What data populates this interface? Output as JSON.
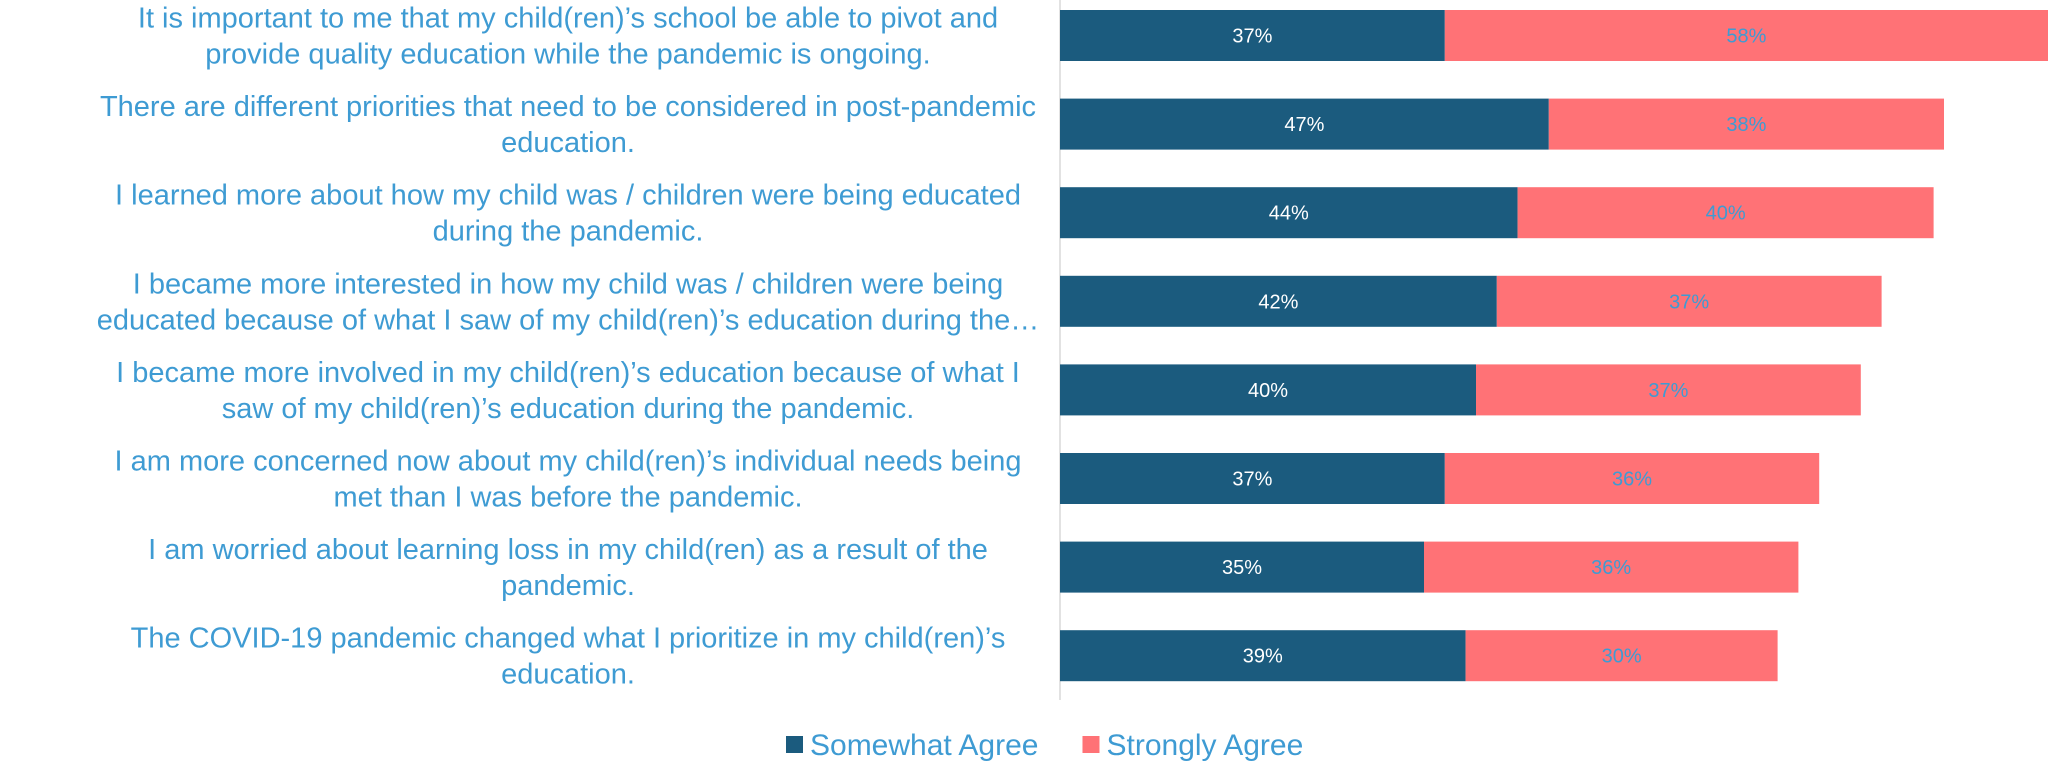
{
  "chart_data": {
    "type": "bar",
    "orientation": "horizontal",
    "stacked": true,
    "categories": [
      "It is important to me that my child(ren)’s school be able to pivot and provide quality education while the pandemic is ongoing.",
      "There are different priorities that need to be considered in post-pandemic education.",
      "I learned more about how my child was / children were being educated during the pandemic.",
      "I became more interested in how my child was / children were being educated because of what I saw of my child(ren)’s education during the…",
      "I became more involved in my child(ren)’s education because of what I saw of my child(ren)’s education during the pandemic.",
      "I am more concerned now about my child(ren)’s individual needs being met than I was before the pandemic.",
      "I am worried about learning loss in my child(ren) as a result of the pandemic.",
      "The COVID-19 pandemic changed what I prioritize in my child(ren)’s education."
    ],
    "category_lines": [
      [
        "It is important to me that my child(ren)’s school be able to pivot and",
        "provide quality education while the pandemic is ongoing."
      ],
      [
        "There are different priorities that need to be considered in post-pandemic",
        "education."
      ],
      [
        "I learned more about how my child was / children were being educated",
        "during the pandemic."
      ],
      [
        "I became more interested in how my child was / children were being",
        "educated because of what I saw of my child(ren)’s education during the…"
      ],
      [
        "I became more involved in my child(ren)’s education because of what I",
        "saw of my child(ren)’s education during the pandemic."
      ],
      [
        "I am more concerned now about my child(ren)’s individual needs being",
        "met than I was before the pandemic."
      ],
      [
        "I am worried about learning loss in my child(ren) as a result of the",
        "pandemic."
      ],
      [
        "The COVID-19 pandemic changed what I prioritize in my child(ren)’s",
        "education."
      ]
    ],
    "series": [
      {
        "name": "Somewhat Agree",
        "color": "#1B5B7E",
        "label_color": "#FFFFFF",
        "values": [
          37,
          47,
          44,
          42,
          40,
          37,
          35,
          39
        ],
        "labels": [
          "37%",
          "47%",
          "44%",
          "42%",
          "40%",
          "37%",
          "35%",
          "39%"
        ]
      },
      {
        "name": "Strongly Agree",
        "color": "#FF7276",
        "label_color": "#3E9BD3",
        "values": [
          58,
          38,
          40,
          37,
          37,
          36,
          36,
          30
        ],
        "labels": [
          "58%",
          "38%",
          "40%",
          "37%",
          "37%",
          "36%",
          "36%",
          "30%"
        ]
      }
    ],
    "xlim": [
      0,
      95
    ],
    "grid": false,
    "legend": "bottom"
  }
}
